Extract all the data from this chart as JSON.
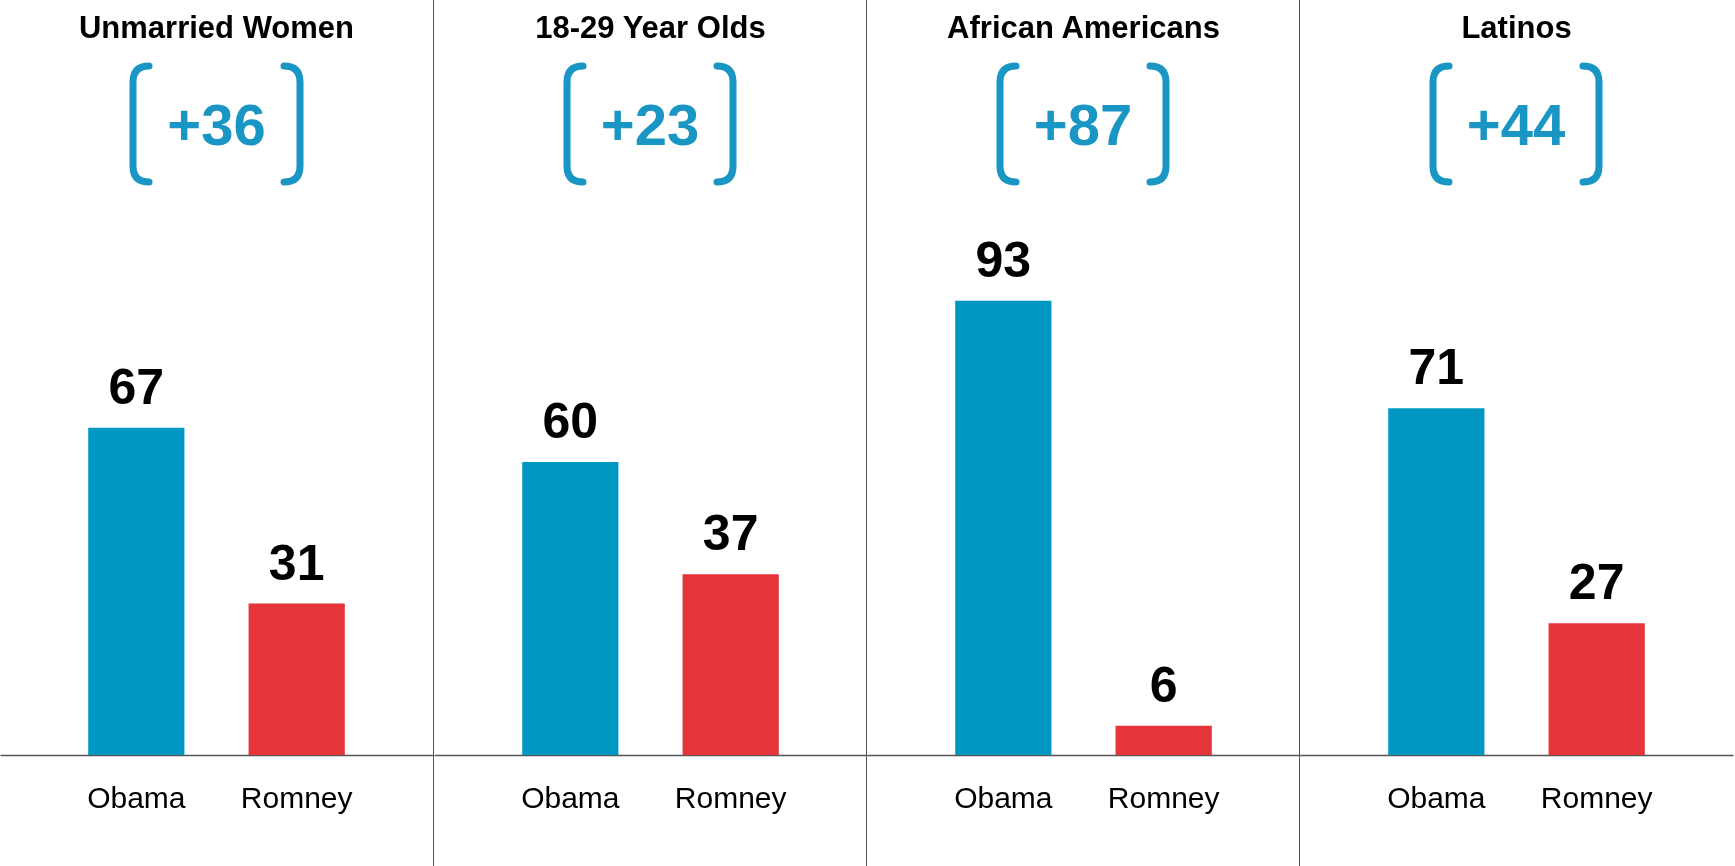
{
  "chart_data": [
    {
      "type": "bar",
      "title": "Unmarried Women",
      "categories": [
        "Obama",
        "Romney"
      ],
      "values": [
        67,
        31
      ],
      "colors": [
        "#0098c3",
        "#e5343a"
      ],
      "data_labels": true,
      "annotations": [
        "+36"
      ]
    },
    {
      "type": "bar",
      "title": "18-29 Year Olds",
      "categories": [
        "Obama",
        "Romney"
      ],
      "values": [
        60,
        37
      ],
      "colors": [
        "#0098c3",
        "#e5343a"
      ],
      "data_labels": true,
      "annotations": [
        "+23"
      ]
    },
    {
      "type": "bar",
      "title": "African Americans",
      "categories": [
        "Obama",
        "Romney"
      ],
      "values": [
        93,
        6
      ],
      "colors": [
        "#0098c3",
        "#e5343a"
      ],
      "data_labels": true,
      "annotations": [
        "+87"
      ]
    },
    {
      "type": "bar",
      "title": "Latinos",
      "categories": [
        "Obama",
        "Romney"
      ],
      "values": [
        71,
        27
      ],
      "colors": [
        "#0098c3",
        "#e5343a"
      ],
      "data_labels": true,
      "annotations": [
        "+44"
      ]
    }
  ]
}
